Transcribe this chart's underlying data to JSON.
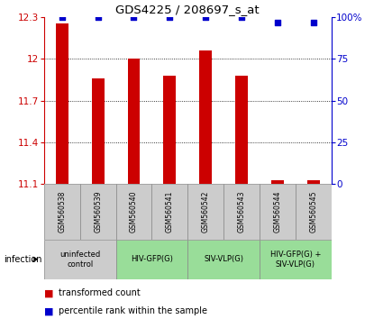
{
  "title": "GDS4225 / 208697_s_at",
  "samples": [
    "GSM560538",
    "GSM560539",
    "GSM560540",
    "GSM560541",
    "GSM560542",
    "GSM560543",
    "GSM560544",
    "GSM560545"
  ],
  "bar_values": [
    12.26,
    11.86,
    12.0,
    11.88,
    12.06,
    11.88,
    11.12,
    11.12
  ],
  "percentile_values": [
    100,
    100,
    100,
    100,
    100,
    100,
    97,
    97
  ],
  "bar_color": "#cc0000",
  "percentile_color": "#0000cc",
  "ylim_left": [
    11.1,
    12.3
  ],
  "yticks_left": [
    11.1,
    11.4,
    11.7,
    12.0,
    12.3
  ],
  "ytick_labels_left": [
    "11.1",
    "11.4",
    "11.7",
    "12",
    "12.3"
  ],
  "ylim_right": [
    0,
    100
  ],
  "yticks_right": [
    0,
    25,
    50,
    75,
    100
  ],
  "ytick_labels_right": [
    "0",
    "25",
    "50",
    "75",
    "100%"
  ],
  "grid_lines": [
    11.4,
    11.7,
    12.0
  ],
  "groups": [
    {
      "label": "uninfected\ncontrol",
      "start": 0,
      "end": 1,
      "color": "#cccccc"
    },
    {
      "label": "HIV-GFP(G)",
      "start": 2,
      "end": 3,
      "color": "#99dd99"
    },
    {
      "label": "SIV-VLP(G)",
      "start": 4,
      "end": 5,
      "color": "#99dd99"
    },
    {
      "label": "HIV-GFP(G) +\nSIV-VLP(G)",
      "start": 6,
      "end": 7,
      "color": "#99dd99"
    }
  ],
  "sample_box_color": "#cccccc",
  "legend_red_label": "transformed count",
  "legend_blue_label": "percentile rank within the sample",
  "infection_label": "infection",
  "background_color": "#ffffff",
  "bar_width": 0.35
}
